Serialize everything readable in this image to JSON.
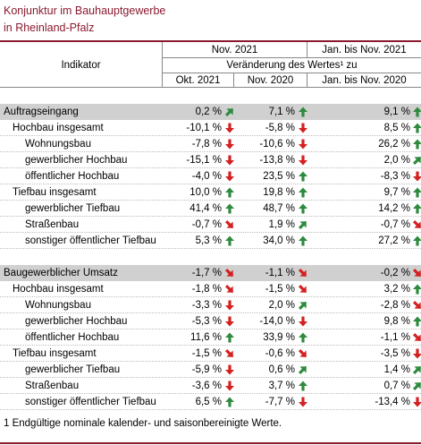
{
  "title": {
    "line1": "Konjunktur im Bauhauptgewerbe",
    "line2": "in Rheinland-Pfalz"
  },
  "header": {
    "indicator_label": "Indikator",
    "col_group1": "Nov. 2021",
    "col_group2": "Jan. bis Nov. 2021",
    "change_label": "Veränderung des Wertes¹ zu",
    "col1": "Okt. 2021",
    "col2": "Nov. 2020",
    "col3": "Jan. bis Nov. 2020"
  },
  "colors": {
    "brand": "#8b1a2e",
    "up": "#2e8b3e",
    "down": "#d42020",
    "section_bg": "#d0d0d0"
  },
  "sections": [
    {
      "rows": [
        {
          "label": "Auftragseingang",
          "level": 0,
          "section": true,
          "values": [
            {
              "v": "0,2 %",
              "a": "up-right"
            },
            {
              "v": "7,1 %",
              "a": "up"
            },
            {
              "v": "9,1 %",
              "a": "up"
            }
          ]
        },
        {
          "label": "Hochbau insgesamt",
          "level": 1,
          "values": [
            {
              "v": "-10,1 %",
              "a": "down"
            },
            {
              "v": "-5,8 %",
              "a": "down"
            },
            {
              "v": "8,5 %",
              "a": "up"
            }
          ]
        },
        {
          "label": "Wohnungsbau",
          "level": 2,
          "values": [
            {
              "v": "-7,8 %",
              "a": "down"
            },
            {
              "v": "-10,6 %",
              "a": "down"
            },
            {
              "v": "26,2 %",
              "a": "up"
            }
          ]
        },
        {
          "label": "gewerblicher Hochbau",
          "level": 2,
          "values": [
            {
              "v": "-15,1 %",
              "a": "down"
            },
            {
              "v": "-13,8 %",
              "a": "down"
            },
            {
              "v": "2,0 %",
              "a": "up-right"
            }
          ]
        },
        {
          "label": "öffentlicher Hochbau",
          "level": 2,
          "values": [
            {
              "v": "-4,0 %",
              "a": "down"
            },
            {
              "v": "23,5 %",
              "a": "up"
            },
            {
              "v": "-8,3 %",
              "a": "down"
            }
          ]
        },
        {
          "label": "Tiefbau insgesamt",
          "level": 1,
          "values": [
            {
              "v": "10,0 %",
              "a": "up"
            },
            {
              "v": "19,8 %",
              "a": "up"
            },
            {
              "v": "9,7 %",
              "a": "up"
            }
          ]
        },
        {
          "label": "gewerblicher Tiefbau",
          "level": 2,
          "values": [
            {
              "v": "41,4 %",
              "a": "up"
            },
            {
              "v": "48,7 %",
              "a": "up"
            },
            {
              "v": "14,2 %",
              "a": "up"
            }
          ]
        },
        {
          "label": "Straßenbau",
          "level": 2,
          "values": [
            {
              "v": "-0,7 %",
              "a": "down-right"
            },
            {
              "v": "1,9 %",
              "a": "up-right"
            },
            {
              "v": "-0,7 %",
              "a": "down-right"
            }
          ]
        },
        {
          "label": "sonstiger öffentlicher Tiefbau",
          "level": 2,
          "values": [
            {
              "v": "5,3 %",
              "a": "up"
            },
            {
              "v": "34,0 %",
              "a": "up"
            },
            {
              "v": "27,2 %",
              "a": "up"
            }
          ]
        }
      ]
    },
    {
      "rows": [
        {
          "label": "Baugewerblicher Umsatz",
          "level": 0,
          "section": true,
          "values": [
            {
              "v": "-1,7 %",
              "a": "down-right"
            },
            {
              "v": "-1,1 %",
              "a": "down-right"
            },
            {
              "v": "-0,2 %",
              "a": "down-right"
            }
          ]
        },
        {
          "label": "Hochbau insgesamt",
          "level": 1,
          "values": [
            {
              "v": "-1,8 %",
              "a": "down-right"
            },
            {
              "v": "-1,5 %",
              "a": "down-right"
            },
            {
              "v": "3,2 %",
              "a": "up"
            }
          ]
        },
        {
          "label": "Wohnungsbau",
          "level": 2,
          "values": [
            {
              "v": "-3,3 %",
              "a": "down"
            },
            {
              "v": "2,0 %",
              "a": "up-right"
            },
            {
              "v": "-2,8 %",
              "a": "down-right"
            }
          ]
        },
        {
          "label": "gewerblicher Hochbau",
          "level": 2,
          "values": [
            {
              "v": "-5,3 %",
              "a": "down"
            },
            {
              "v": "-14,0 %",
              "a": "down"
            },
            {
              "v": "9,8 %",
              "a": "up"
            }
          ]
        },
        {
          "label": "öffentlicher Hochbau",
          "level": 2,
          "values": [
            {
              "v": "11,6 %",
              "a": "up"
            },
            {
              "v": "33,9 %",
              "a": "up"
            },
            {
              "v": "-1,1 %",
              "a": "down-right"
            }
          ]
        },
        {
          "label": "Tiefbau insgesamt",
          "level": 1,
          "values": [
            {
              "v": "-1,5 %",
              "a": "down-right"
            },
            {
              "v": "-0,6 %",
              "a": "down-right"
            },
            {
              "v": "-3,5 %",
              "a": "down"
            }
          ]
        },
        {
          "label": "gewerblicher Tiefbau",
          "level": 2,
          "values": [
            {
              "v": "-5,9 %",
              "a": "down"
            },
            {
              "v": "0,6 %",
              "a": "up-right"
            },
            {
              "v": "1,4 %",
              "a": "up-right"
            }
          ]
        },
        {
          "label": "Straßenbau",
          "level": 2,
          "values": [
            {
              "v": "-3,6 %",
              "a": "down"
            },
            {
              "v": "3,7 %",
              "a": "up"
            },
            {
              "v": "0,7 %",
              "a": "up-right"
            }
          ]
        },
        {
          "label": "sonstiger öffentlicher Tiefbau",
          "level": 2,
          "values": [
            {
              "v": "6,5 %",
              "a": "up"
            },
            {
              "v": "-7,7 %",
              "a": "down"
            },
            {
              "v": "-13,4 %",
              "a": "down"
            }
          ]
        }
      ]
    }
  ],
  "footnote": "1 Endgültige nominale kalender- und saisonbereinigte Werte."
}
